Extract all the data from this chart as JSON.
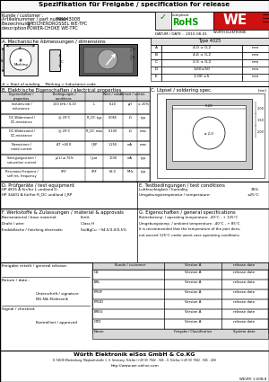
{
  "title": "Spezifikation für Freigabe / specification for release",
  "kunde_label": "Kunde / customer :",
  "artnr_label": "Artikelnummer / part number :",
  "artnr_value": "744043008",
  "bezeichnung_label": "Bezeichnung :",
  "bezeichnung_value": "SPEICHERDROSSEL WE-TPC",
  "description_label": "description :",
  "description_value": "POWER-CHOKE WE-TPC",
  "datum_label": "DATUM / DATE :",
  "datum_value": "2010-08-01",
  "section_a": "A. Mechanische Abmessungen / dimensions",
  "type_label": "Type 4025",
  "dim_rows": [
    [
      "A",
      "4,0 ± 0,2",
      "mm"
    ],
    [
      "B",
      "4,6 ± 0,2",
      "mm"
    ],
    [
      "C",
      "2,5 ± 0,2",
      "mm"
    ],
    [
      "D",
      "1,60±50",
      "mm"
    ],
    [
      "E",
      "1,00 ±5",
      "mm"
    ]
  ],
  "start_winding": "# = Start of winding     Marking = Inductance code",
  "section_b": "B. Elektrische Eigenschaften / electrical properties",
  "section_c_sol": "C. Löpsel / soldering spec.",
  "section_d": "D. Prüfgeräte / test equipment",
  "section_e": "E. Testbedingungen / test conditions",
  "d_text1": "HP 4815 A für/for L und/and D,",
  "d_text2": "HP 34401 A für/for R_DC und/and I_RP",
  "e_text1": "Luftfeuchtigkeit / humidity:",
  "e_val1": "35%",
  "e_text2": "Umgebungstemperatur / temperature:",
  "e_val2": "±25°C",
  "section_f": "F. Werkstoffe & Zulassungen / material & approvals",
  "section_g_gen": "G. Eigenschaften / general specifications",
  "f_rows": [
    [
      "Basismaterial / base material:",
      "Ferrit"
    ],
    [
      "Draht / wire:",
      "Class H"
    ],
    [
      "Endoblläche / finishing electrode:",
      "Sn/AgCu ~94,5/3,0/0,5%"
    ]
  ],
  "g_gen_rows": [
    "Betriebstemp. / operating temperature: -40°C - + 125°C",
    "Umgebungstemp. / ambient temperature: -40°C - + 85°C",
    "It is recommended that the temperature of the part does,",
    "not exceed 125°C under worst case operating conditions."
  ],
  "freigabe_label": "Freigabe erteilt / general release:",
  "return_label": "Return / date :",
  "signal_label": "Signal / checked:",
  "unternehmen": "Unterschrift / signature",
  "ng_elektr": "NG-Nik Elektronik",
  "kontrolliert": "Kontrolliert / approved",
  "sign_items": [
    "QS",
    "ERL",
    "PROF",
    "PROD",
    "EREU",
    "GTD"
  ],
  "company_footer": "Würth Elektronik eiSos GmbH & Co.KG",
  "address_footer": "D-74638 Waldenburg, Maybachstraße 1, S. Germany, Telefon (+49 (0) 7942 - 945 - 0, Telefax (+49 (0) 7942 - 945 - 400",
  "web_footer": "http://www.we-online.com",
  "doc_nr": "WEVFE 1-V0N 8",
  "bg_color": "#ffffff"
}
